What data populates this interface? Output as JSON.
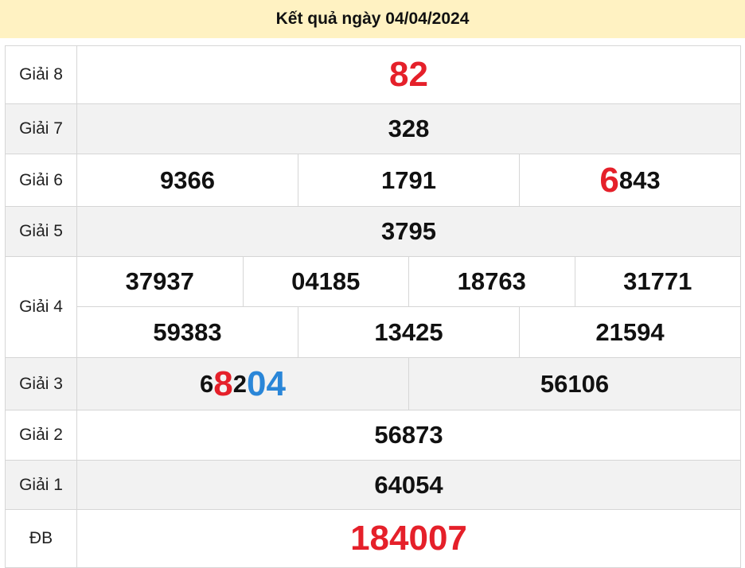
{
  "header": {
    "title": "Kết quả ngày 04/04/2024"
  },
  "colors": {
    "red": "#e5202a",
    "blue": "#2a86d8",
    "header_bg": "#fff2c2",
    "alt_row": "#f2f2f2"
  },
  "prizes": {
    "g8": {
      "label": "Giải 8",
      "numbers": [
        "82"
      ]
    },
    "g7": {
      "label": "Giải 7",
      "numbers": [
        "328"
      ]
    },
    "g6": {
      "label": "Giải 6",
      "numbers": [
        "9366",
        "1791",
        "6843"
      ]
    },
    "g5": {
      "label": "Giải 5",
      "numbers": [
        "3795"
      ]
    },
    "g4": {
      "label": "Giải 4",
      "numbers": [
        "37937",
        "04185",
        "18763",
        "31771",
        "59383",
        "13425",
        "21594"
      ]
    },
    "g3": {
      "label": "Giải 3",
      "numbers": [
        "68204",
        "56106"
      ]
    },
    "g2": {
      "label": "Giải 2",
      "numbers": [
        "56873"
      ]
    },
    "g1": {
      "label": "Giải 1",
      "numbers": [
        "64054"
      ]
    },
    "db": {
      "label": "ĐB",
      "numbers": [
        "184007"
      ]
    }
  },
  "highlights": {
    "g6_3_first": "6",
    "g6_3_rest": "843",
    "g3_1": {
      "a": "6",
      "b": "8",
      "c": "2",
      "d": "04"
    }
  }
}
